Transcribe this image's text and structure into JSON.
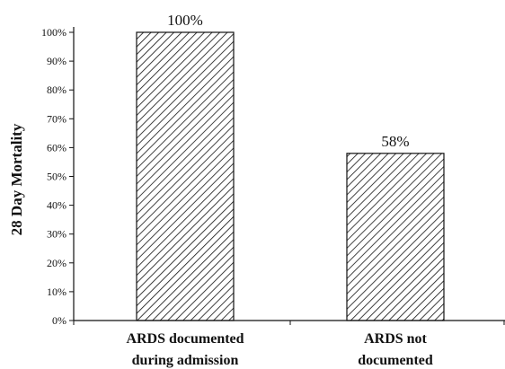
{
  "chart_data": {
    "type": "bar",
    "title": "",
    "xlabel": "",
    "ylabel": "28 Day Mortality",
    "categories": [
      [
        "ARDS documented",
        "during admission"
      ],
      [
        "ARDS not",
        "documented"
      ]
    ],
    "values": [
      100,
      58
    ],
    "data_labels": [
      "100%",
      "58%"
    ],
    "ylim": [
      0,
      100
    ],
    "yticks": [
      0,
      10,
      20,
      30,
      40,
      50,
      60,
      70,
      80,
      90,
      100
    ],
    "ytick_labels": [
      "0%",
      "10%",
      "20%",
      "30%",
      "40%",
      "50%",
      "60%",
      "70%",
      "80%",
      "90%",
      "100%"
    ],
    "grid": false,
    "legend": "none",
    "bar_fill": "diagonal-hatch",
    "colors": {
      "bar_stroke": "#111111",
      "hatch": "#111111",
      "background": "#ffffff",
      "axis": "#111111"
    }
  }
}
